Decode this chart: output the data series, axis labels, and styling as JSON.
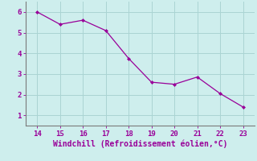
{
  "x": [
    14,
    15,
    16,
    17,
    18,
    19,
    20,
    21,
    22,
    23
  ],
  "y": [
    6.0,
    5.4,
    5.6,
    5.1,
    3.75,
    2.6,
    2.5,
    2.85,
    2.05,
    1.4
  ],
  "line_color": "#990099",
  "marker": "D",
  "marker_size": 2.0,
  "xlabel": "Windchill (Refroidissement éolien,°C)",
  "xlim": [
    13.5,
    23.5
  ],
  "ylim": [
    0.5,
    6.5
  ],
  "xticks": [
    14,
    15,
    16,
    17,
    18,
    19,
    20,
    21,
    22,
    23
  ],
  "yticks": [
    1,
    2,
    3,
    4,
    5,
    6
  ],
  "bg_color": "#ceeeed",
  "grid_color": "#aad4d3",
  "tick_color": "#990099",
  "label_color": "#990099",
  "spine_color": "#7a7a7a",
  "xlabel_fontsize": 7,
  "tick_fontsize": 6.5,
  "linewidth": 0.9
}
